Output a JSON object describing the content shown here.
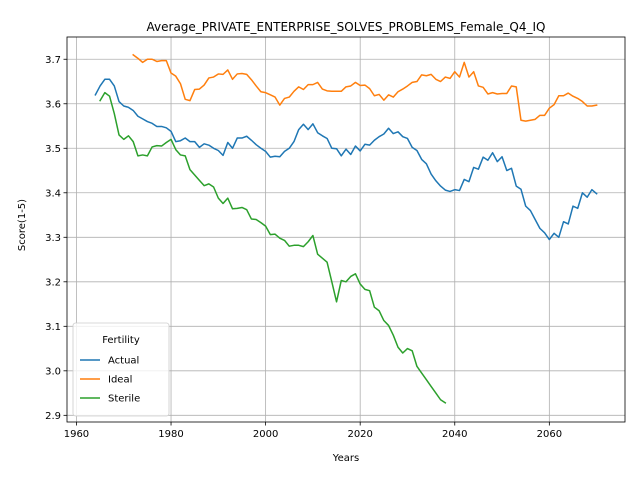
{
  "chart_data": {
    "type": "line",
    "title": "Average_PRIVATE_ENTERPRISE_SOLVES_PROBLEMS_Female_Q4_IQ",
    "xlabel": "Years",
    "ylabel": "Score(1-5)",
    "xlim": [
      1958,
      2076
    ],
    "ylim": [
      2.885,
      3.75
    ],
    "xticks": [
      1960,
      1980,
      2000,
      2020,
      2040,
      2060
    ],
    "yticks": [
      2.9,
      3.0,
      3.1,
      3.2,
      3.3,
      3.4,
      3.5,
      3.6,
      3.7
    ],
    "grid": true,
    "legend": {
      "title": "Fertility",
      "placement": "lower-left"
    },
    "series": [
      {
        "name": "Actual",
        "color": "#1f77b4",
        "x": [
          1964,
          1965,
          1966,
          1967,
          1968,
          1969,
          1970,
          1971,
          1972,
          1973,
          1974,
          1975,
          1976,
          1977,
          1978,
          1979,
          1980,
          1981,
          1982,
          1983,
          1984,
          1985,
          1986,
          1987,
          1988,
          1989,
          1990,
          1991,
          1992,
          1993,
          1994,
          1995,
          1996,
          1997,
          1998,
          1999,
          2000,
          2001,
          2002,
          2003,
          2004,
          2005,
          2006,
          2007,
          2008,
          2009,
          2010,
          2011,
          2012,
          2013,
          2014,
          2015,
          2016,
          2017,
          2018,
          2019,
          2020,
          2021,
          2022,
          2023,
          2024,
          2025,
          2026,
          2027,
          2028,
          2029,
          2030,
          2031,
          2032,
          2033,
          2034,
          2035,
          2036,
          2037,
          2038,
          2039,
          2040,
          2041,
          2042,
          2043,
          2044,
          2045,
          2046,
          2047,
          2048,
          2049,
          2050,
          2051,
          2052,
          2053,
          2054,
          2055,
          2056,
          2057,
          2058,
          2059,
          2060,
          2061,
          2062,
          2063,
          2064,
          2065,
          2066,
          2067,
          2068,
          2069,
          2070
        ],
        "y": [
          3.62,
          3.64,
          3.655,
          3.655,
          3.64,
          3.605,
          3.595,
          3.592,
          3.585,
          3.572,
          3.566,
          3.56,
          3.556,
          3.549,
          3.549,
          3.546,
          3.538,
          3.515,
          3.517,
          3.523,
          3.515,
          3.515,
          3.502,
          3.51,
          3.507,
          3.5,
          3.495,
          3.484,
          3.513,
          3.5,
          3.523,
          3.523,
          3.527,
          3.518,
          3.508,
          3.5,
          3.493,
          3.48,
          3.482,
          3.481,
          3.493,
          3.5,
          3.515,
          3.542,
          3.554,
          3.542,
          3.555,
          3.535,
          3.528,
          3.522,
          3.5,
          3.499,
          3.483,
          3.498,
          3.486,
          3.505,
          3.494,
          3.509,
          3.507,
          3.518,
          3.526,
          3.532,
          3.545,
          3.533,
          3.537,
          3.526,
          3.522,
          3.502,
          3.495,
          3.475,
          3.465,
          3.442,
          3.427,
          3.415,
          3.406,
          3.403,
          3.407,
          3.405,
          3.43,
          3.425,
          3.457,
          3.453,
          3.48,
          3.473,
          3.49,
          3.47,
          3.481,
          3.45,
          3.455,
          3.415,
          3.408,
          3.37,
          3.36,
          3.34,
          3.32,
          3.31,
          3.295,
          3.309,
          3.3,
          3.335,
          3.33,
          3.37,
          3.365,
          3.4,
          3.39,
          3.407,
          3.398
        ]
      },
      {
        "name": "Ideal",
        "color": "#ff7f0e",
        "x": [
          1972,
          1973,
          1974,
          1975,
          1976,
          1977,
          1978,
          1979,
          1980,
          1981,
          1982,
          1983,
          1984,
          1985,
          1986,
          1987,
          1988,
          1989,
          1990,
          1991,
          1992,
          1993,
          1994,
          1995,
          1996,
          1997,
          1998,
          1999,
          2000,
          2001,
          2002,
          2003,
          2004,
          2005,
          2006,
          2007,
          2008,
          2009,
          2010,
          2011,
          2012,
          2013,
          2014,
          2015,
          2016,
          2017,
          2018,
          2019,
          2020,
          2021,
          2022,
          2023,
          2024,
          2025,
          2026,
          2027,
          2028,
          2029,
          2030,
          2031,
          2032,
          2033,
          2034,
          2035,
          2036,
          2037,
          2038,
          2039,
          2040,
          2041,
          2042,
          2043,
          2044,
          2045,
          2046,
          2047,
          2048,
          2049,
          2050,
          2051,
          2052,
          2053,
          2054,
          2055,
          2056,
          2057,
          2058,
          2059,
          2060,
          2061,
          2062,
          2063,
          2064,
          2065,
          2066,
          2067,
          2068,
          2069,
          2070
        ],
        "y": [
          3.71,
          3.702,
          3.693,
          3.7,
          3.7,
          3.695,
          3.697,
          3.697,
          3.669,
          3.662,
          3.645,
          3.61,
          3.607,
          3.632,
          3.633,
          3.642,
          3.658,
          3.66,
          3.667,
          3.666,
          3.676,
          3.655,
          3.667,
          3.668,
          3.666,
          3.654,
          3.64,
          3.627,
          3.625,
          3.62,
          3.615,
          3.597,
          3.612,
          3.615,
          3.628,
          3.638,
          3.632,
          3.643,
          3.643,
          3.648,
          3.633,
          3.629,
          3.628,
          3.628,
          3.628,
          3.638,
          3.64,
          3.648,
          3.641,
          3.642,
          3.634,
          3.618,
          3.621,
          3.608,
          3.62,
          3.615,
          3.627,
          3.633,
          3.64,
          3.648,
          3.65,
          3.665,
          3.663,
          3.666,
          3.655,
          3.65,
          3.66,
          3.657,
          3.672,
          3.66,
          3.693,
          3.66,
          3.672,
          3.64,
          3.637,
          3.622,
          3.625,
          3.622,
          3.623,
          3.623,
          3.64,
          3.638,
          3.563,
          3.561,
          3.563,
          3.565,
          3.574,
          3.574,
          3.59,
          3.598,
          3.618,
          3.618,
          3.624,
          3.617,
          3.612,
          3.605,
          3.595,
          3.595,
          3.597
        ]
      },
      {
        "name": "Sterile",
        "color": "#2ca02c",
        "x": [
          1965,
          1966,
          1967,
          1968,
          1969,
          1970,
          1971,
          1972,
          1973,
          1974,
          1975,
          1976,
          1977,
          1978,
          1979,
          1980,
          1981,
          1982,
          1983,
          1984,
          1985,
          1986,
          1987,
          1988,
          1989,
          1990,
          1991,
          1992,
          1993,
          1994,
          1995,
          1996,
          1997,
          1998,
          1999,
          2000,
          2001,
          2002,
          2003,
          2004,
          2005,
          2006,
          2007,
          2008,
          2009,
          2010,
          2011,
          2012,
          2013,
          2014,
          2015,
          2016,
          2017,
          2018,
          2019,
          2020,
          2021,
          2022,
          2023,
          2024,
          2025,
          2026,
          2027,
          2028,
          2029,
          2030,
          2031,
          2032,
          2033,
          2034,
          2035,
          2036,
          2037,
          2038
        ],
        "y": [
          3.607,
          3.625,
          3.617,
          3.578,
          3.53,
          3.52,
          3.528,
          3.515,
          3.483,
          3.485,
          3.483,
          3.503,
          3.506,
          3.505,
          3.513,
          3.52,
          3.497,
          3.485,
          3.483,
          3.452,
          3.44,
          3.428,
          3.416,
          3.42,
          3.413,
          3.388,
          3.376,
          3.388,
          3.364,
          3.365,
          3.367,
          3.362,
          3.341,
          3.34,
          3.333,
          3.325,
          3.306,
          3.307,
          3.298,
          3.293,
          3.28,
          3.282,
          3.282,
          3.279,
          3.29,
          3.304,
          3.262,
          3.253,
          3.244,
          3.2,
          3.155,
          3.203,
          3.2,
          3.212,
          3.218,
          3.195,
          3.183,
          3.18,
          3.143,
          3.135,
          3.113,
          3.102,
          3.08,
          3.053,
          3.04,
          3.05,
          3.045,
          3.01,
          2.995,
          2.98,
          2.965,
          2.95,
          2.935,
          2.928
        ]
      }
    ]
  }
}
